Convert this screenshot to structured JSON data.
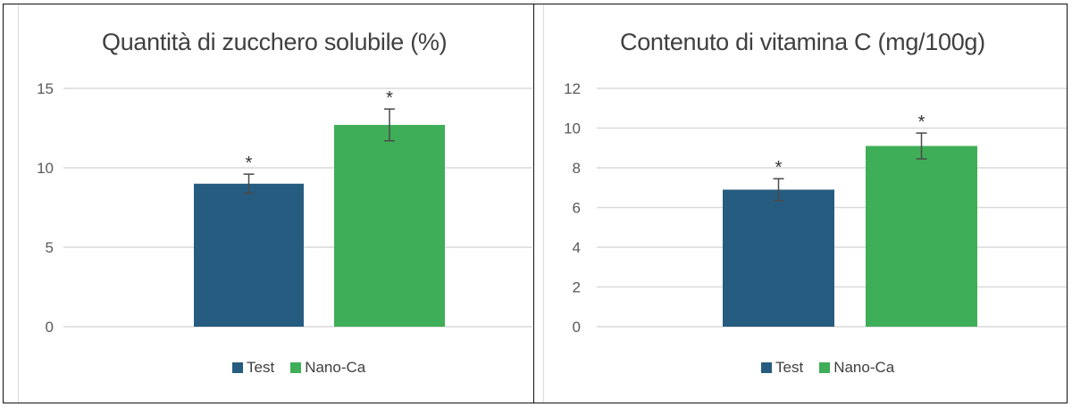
{
  "colors": {
    "test": "#265c80",
    "nano": "#3fae58",
    "grid": "#d9d9d9",
    "text": "#595959",
    "error": "#4a4a4a"
  },
  "legend": [
    {
      "label": "Test",
      "color": "#265c80"
    },
    {
      "label": "Nano-Ca",
      "color": "#3fae58"
    }
  ],
  "chart_data": [
    {
      "type": "bar",
      "title": "Quantità di zucchero solubile (%)",
      "xlabel": "",
      "ylabel": "",
      "categories": [
        ""
      ],
      "series": [
        {
          "name": "Test",
          "values": [
            9.0
          ],
          "error": [
            0.6
          ],
          "significance": "*"
        },
        {
          "name": "Nano-Ca",
          "values": [
            12.7
          ],
          "error": [
            1.0
          ],
          "significance": "*"
        }
      ],
      "yticks": [
        0,
        5,
        10,
        15
      ],
      "ylim": [
        0,
        15
      ],
      "grid": true,
      "legend_position": "bottom"
    },
    {
      "type": "bar",
      "title": "Contenuto di vitamina C (mg/100g)",
      "xlabel": "",
      "ylabel": "",
      "categories": [
        ""
      ],
      "series": [
        {
          "name": "Test",
          "values": [
            6.9
          ],
          "error": [
            0.55
          ],
          "significance": "*"
        },
        {
          "name": "Nano-Ca",
          "values": [
            9.1
          ],
          "error": [
            0.65
          ],
          "significance": "*"
        }
      ],
      "yticks": [
        0,
        2,
        4,
        6,
        8,
        10,
        12
      ],
      "ylim": [
        0,
        12
      ],
      "grid": true,
      "legend_position": "bottom"
    }
  ]
}
